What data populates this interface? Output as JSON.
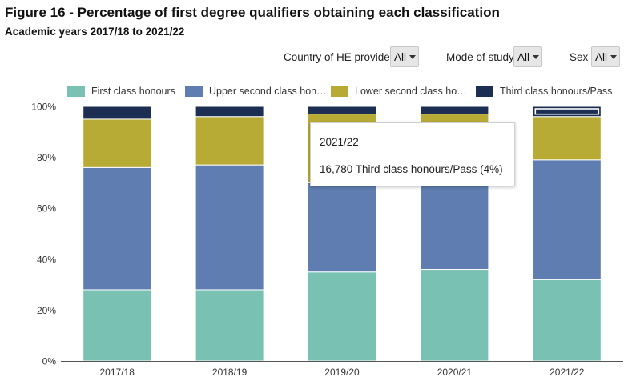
{
  "header": {
    "title": "Figure 16 - Percentage of first degree qualifiers obtaining each classification",
    "subtitle": "Academic years 2017/18 to 2021/22"
  },
  "filters": [
    {
      "label": "Country of HE provider",
      "value": "All"
    },
    {
      "label": "Mode of study",
      "value": "All"
    },
    {
      "label": "Sex",
      "value": "All"
    }
  ],
  "tooltip": {
    "year": "2021/22",
    "text": "16,780 Third class honours/Pass (4%)"
  },
  "colors": {
    "first": "#79c1b3",
    "upper": "#5f7db1",
    "lower": "#b8ab35",
    "third": "#1c2e52"
  },
  "chart_data": {
    "type": "bar",
    "stacked": true,
    "categories": [
      "2017/18",
      "2018/19",
      "2019/20",
      "2020/21",
      "2021/22"
    ],
    "series": [
      {
        "name": "First class honours",
        "legend_label": "First class honours",
        "values": [
          28,
          28,
          35,
          36,
          32
        ]
      },
      {
        "name": "Upper second class honours",
        "legend_label": "Upper second class hon…",
        "values": [
          48,
          49,
          35,
          34,
          47
        ]
      },
      {
        "name": "Lower second class honours",
        "legend_label": "Lower second class ho…",
        "values": [
          19,
          19,
          27,
          27,
          17
        ]
      },
      {
        "name": "Third class honours/Pass",
        "legend_label": "Third class honours/Pass",
        "values": [
          5,
          4,
          3,
          3,
          4
        ]
      }
    ],
    "y_ticks": [
      "0%",
      "20%",
      "40%",
      "60%",
      "80%",
      "100%"
    ],
    "ylim": [
      0,
      100
    ],
    "xlabel": "",
    "ylabel": "",
    "legend": "top",
    "highlighted": {
      "category": "2021/22",
      "series": "Third class honours/Pass"
    }
  }
}
